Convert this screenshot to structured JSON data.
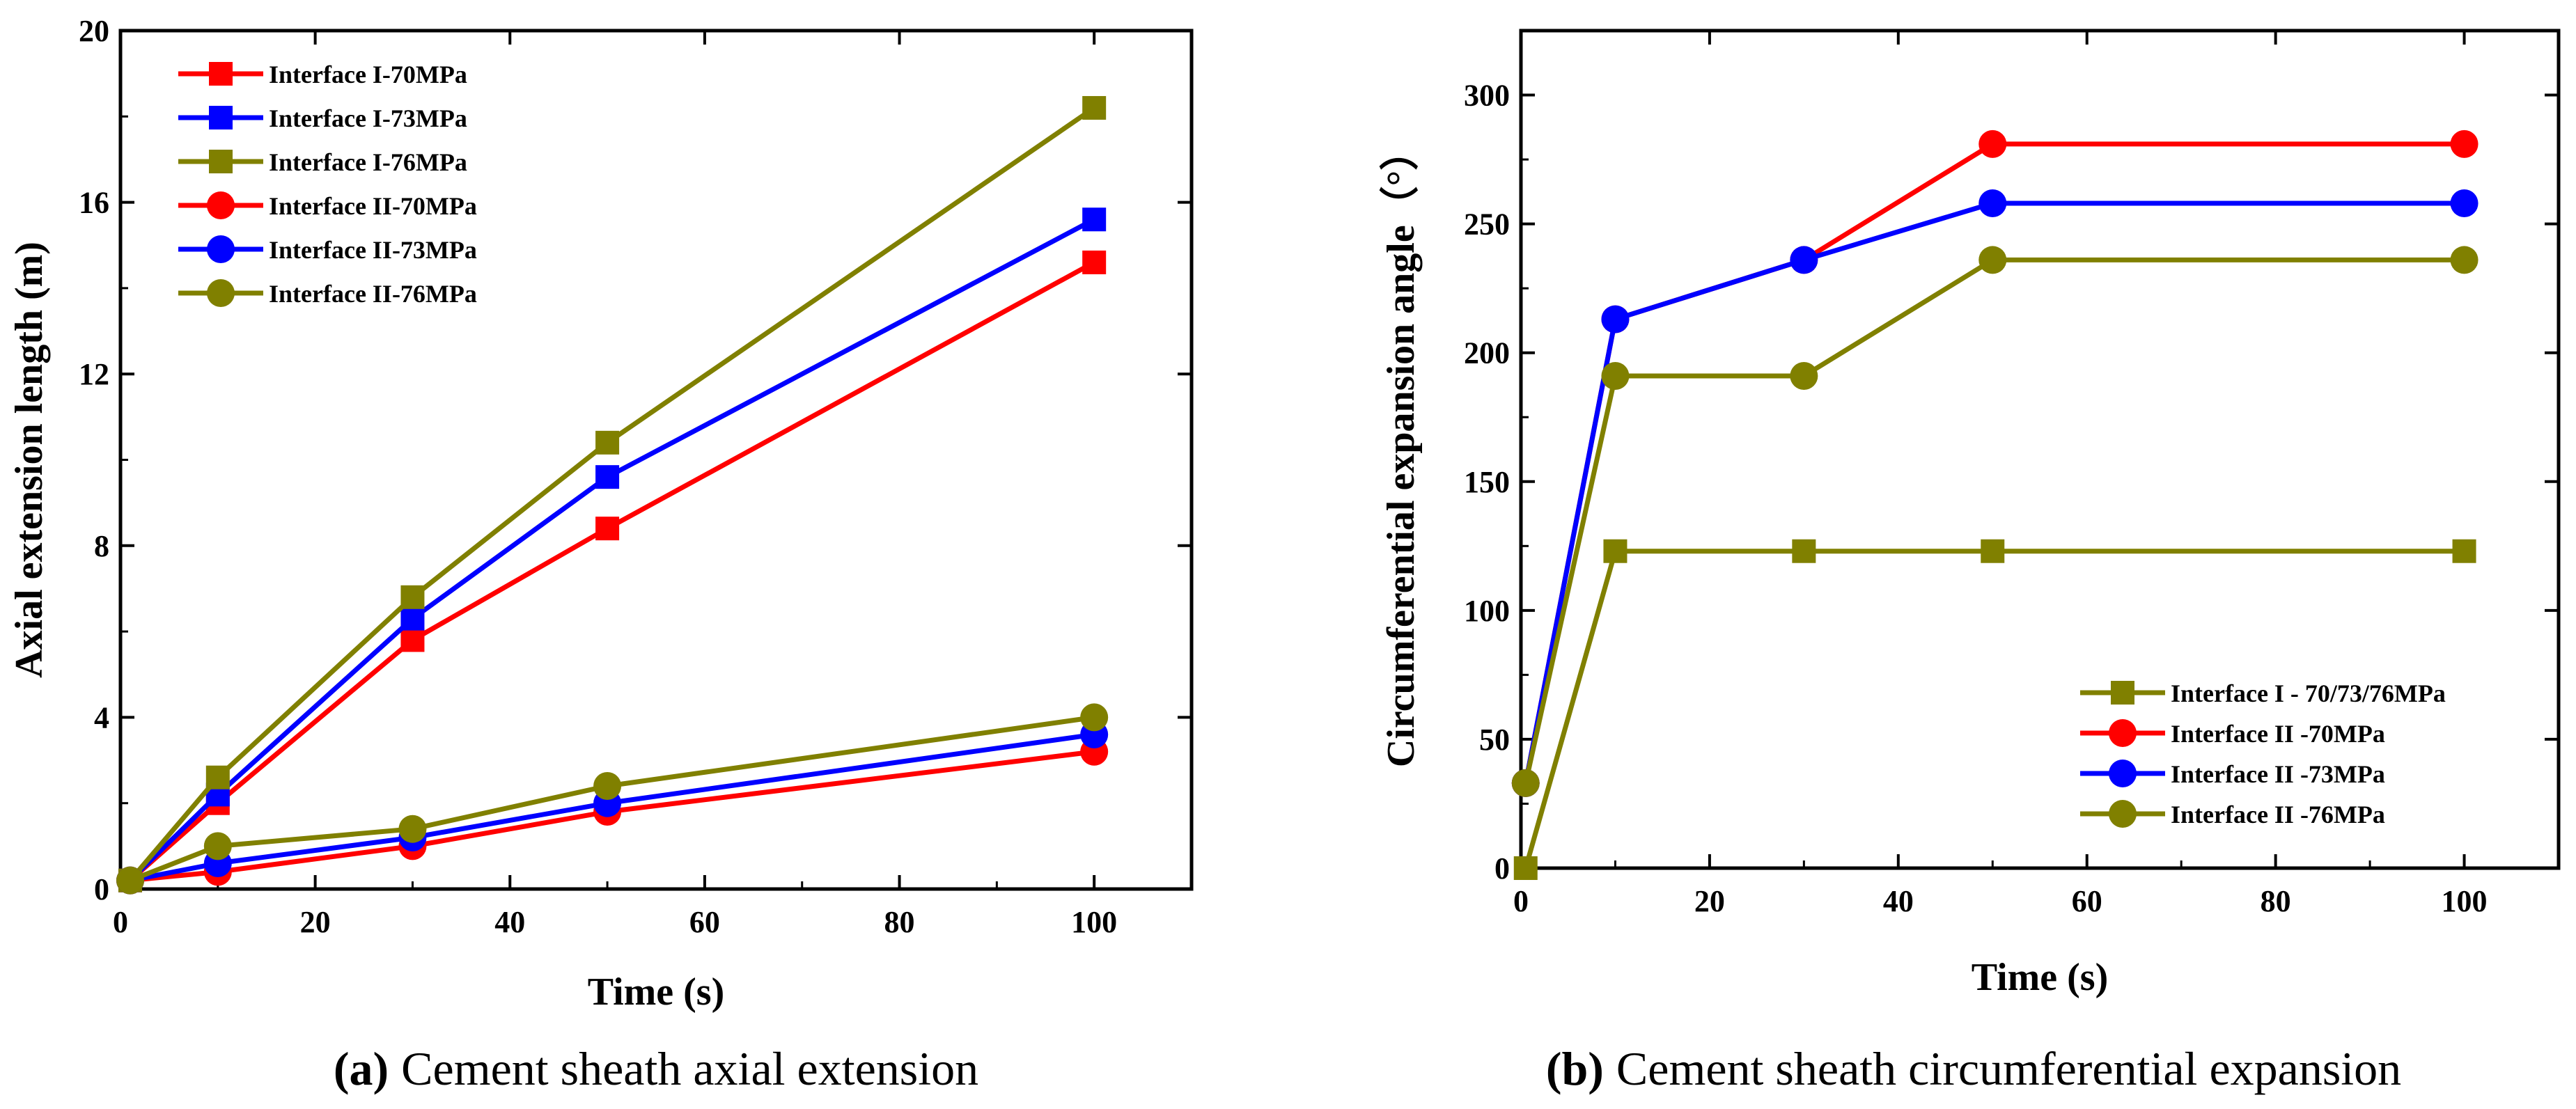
{
  "chart_data": [
    {
      "type": "line",
      "title": "",
      "xlabel": "Time (s)",
      "ylabel": "Axial extension length (m)",
      "xlim": [
        0,
        110
      ],
      "ylim": [
        0,
        20
      ],
      "xticks": [
        0,
        20,
        40,
        60,
        80,
        100
      ],
      "yticks": [
        0,
        4,
        8,
        12,
        16,
        20
      ],
      "grid": false,
      "legend_position": "top-left",
      "x": [
        1,
        10,
        30,
        50,
        100
      ],
      "series": [
        {
          "name": "Interface I-70MPa",
          "marker": "square",
          "color": "#ff0000",
          "values": [
            0.2,
            2.0,
            5.8,
            8.4,
            14.6
          ]
        },
        {
          "name": "Interface I-73MPa",
          "marker": "square",
          "color": "#0000ff",
          "values": [
            0.2,
            2.2,
            6.3,
            9.6,
            15.6
          ]
        },
        {
          "name": "Interface I-76MPa",
          "marker": "square",
          "color": "#808000",
          "values": [
            0.2,
            2.6,
            6.8,
            10.4,
            18.2
          ]
        },
        {
          "name": "Interface II-70MPa",
          "marker": "circle",
          "color": "#ff0000",
          "values": [
            0.2,
            0.4,
            1.0,
            1.8,
            3.2
          ]
        },
        {
          "name": "Interface II-73MPa",
          "marker": "circle",
          "color": "#0000ff",
          "values": [
            0.2,
            0.6,
            1.2,
            2.0,
            3.6
          ]
        },
        {
          "name": "Interface II-76MPa",
          "marker": "circle",
          "color": "#808000",
          "values": [
            0.2,
            1.0,
            1.4,
            2.4,
            4.0
          ]
        }
      ],
      "caption": {
        "tag": "(a)",
        "text": "Cement sheath axial extension"
      }
    },
    {
      "type": "line",
      "title": "",
      "xlabel": "Time (s)",
      "ylabel": "Circumferential expansion angle（°）",
      "xlim": [
        0,
        110
      ],
      "ylim": [
        0,
        325
      ],
      "xticks": [
        0,
        20,
        40,
        60,
        80,
        100
      ],
      "yticks": [
        0,
        50,
        100,
        150,
        200,
        250,
        300
      ],
      "grid": false,
      "legend_position": "bottom-right",
      "x": [
        0.5,
        10,
        30,
        50,
        100
      ],
      "series": [
        {
          "name": "Interface I - 70/73/76MPa",
          "marker": "square",
          "color": "#808000",
          "values": [
            0,
            123,
            123,
            123,
            123
          ]
        },
        {
          "name": "Interface II -70MPa",
          "marker": "circle",
          "color": "#ff0000",
          "values": [
            33,
            213,
            236,
            281,
            281
          ]
        },
        {
          "name": "Interface II -73MPa",
          "marker": "circle",
          "color": "#0000ff",
          "values": [
            33,
            213,
            236,
            258,
            258
          ]
        },
        {
          "name": "Interface II -76MPa",
          "marker": "circle",
          "color": "#808000",
          "values": [
            33,
            191,
            191,
            236,
            236
          ]
        }
      ],
      "caption": {
        "tag": "(b)",
        "text": "Cement sheath circumferential expansion"
      }
    }
  ]
}
